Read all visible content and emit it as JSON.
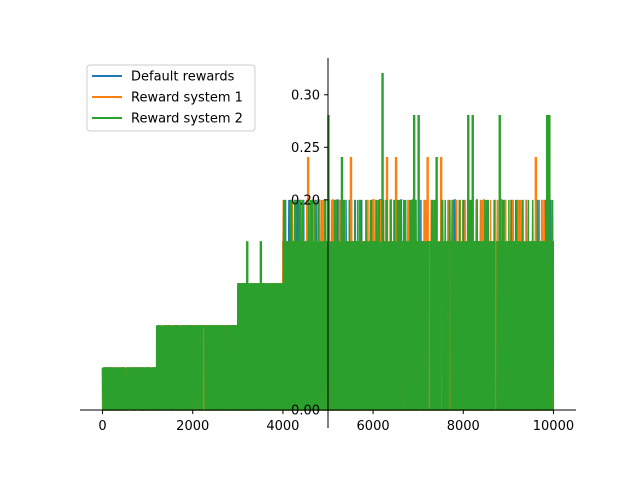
{
  "chart_data": {
    "type": "line",
    "title": "",
    "xlabel": "",
    "ylabel": "",
    "xlim": [
      -500,
      10500
    ],
    "ylim": [
      0.0,
      0.335
    ],
    "x_ticks": [
      {
        "value": 0,
        "label": "0"
      },
      {
        "value": 2000,
        "label": "2000"
      },
      {
        "value": 4000,
        "label": "4000"
      },
      {
        "value": 6000,
        "label": "6000"
      },
      {
        "value": 8000,
        "label": "8000"
      },
      {
        "value": 10000,
        "label": "10000"
      }
    ],
    "y_ticks": [
      {
        "value": 0.0,
        "label": "0.00"
      },
      {
        "value": 0.2,
        "label": "0.20"
      },
      {
        "value": 0.25,
        "label": "0.25"
      },
      {
        "value": 0.3,
        "label": "0.30"
      }
    ],
    "grid": false,
    "legend_position": "upper-left",
    "series": [
      {
        "name": "Default rewards",
        "color": "#1f77b4",
        "levels": [
          {
            "x_start": 0,
            "x_end": 1200,
            "base": 0.04
          },
          {
            "x_start": 1200,
            "x_end": 3000,
            "base": 0.08
          },
          {
            "x_start": 3000,
            "x_end": 4000,
            "base": 0.12
          },
          {
            "x_start": 4000,
            "x_end": 10000,
            "base": 0.16
          }
        ]
      },
      {
        "name": "Reward system 1",
        "color": "#ff7f0e",
        "levels": [
          {
            "x_start": 0,
            "x_end": 1200,
            "base": 0.04
          },
          {
            "x_start": 1200,
            "x_end": 3000,
            "base": 0.08
          },
          {
            "x_start": 3000,
            "x_end": 4000,
            "base": 0.12
          },
          {
            "x_start": 4000,
            "x_end": 10000,
            "base": 0.16
          }
        ],
        "peaks": [
          {
            "x": 4550,
            "y": 0.24
          },
          {
            "x": 5500,
            "y": 0.24
          },
          {
            "x": 6000,
            "y": 0.2
          },
          {
            "x": 6300,
            "y": 0.24
          },
          {
            "x": 6500,
            "y": 0.24
          },
          {
            "x": 7200,
            "y": 0.24
          },
          {
            "x": 7500,
            "y": 0.24
          },
          {
            "x": 9600,
            "y": 0.24
          }
        ]
      },
      {
        "name": "Reward system 2",
        "color": "#2ca02c",
        "levels": [
          {
            "x_start": 0,
            "x_end": 1200,
            "base": 0.04
          },
          {
            "x_start": 1200,
            "x_end": 3000,
            "base": 0.08
          },
          {
            "x_start": 3000,
            "x_end": 4000,
            "base": 0.12
          },
          {
            "x_start": 4000,
            "x_end": 10000,
            "base": 0.16
          }
        ],
        "peaks": [
          {
            "x": 3200,
            "y": 0.16
          },
          {
            "x": 3500,
            "y": 0.16
          },
          {
            "x": 5000,
            "y": 0.28
          },
          {
            "x": 5300,
            "y": 0.24
          },
          {
            "x": 6200,
            "y": 0.32
          },
          {
            "x": 6900,
            "y": 0.28
          },
          {
            "x": 7000,
            "y": 0.28
          },
          {
            "x": 7400,
            "y": 0.24
          },
          {
            "x": 8100,
            "y": 0.28
          },
          {
            "x": 8200,
            "y": 0.28
          },
          {
            "x": 8800,
            "y": 0.28
          },
          {
            "x": 9850,
            "y": 0.28
          },
          {
            "x": 9900,
            "y": 0.28
          }
        ]
      }
    ]
  }
}
